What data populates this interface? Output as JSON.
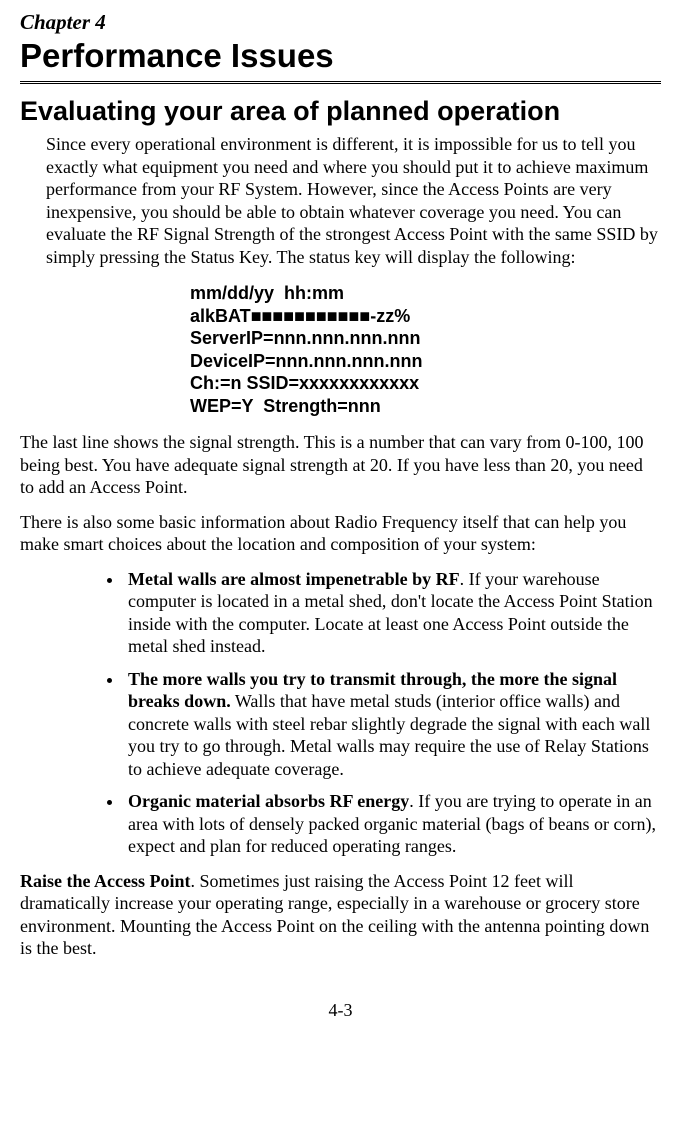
{
  "chapter": {
    "label": "Chapter 4",
    "title": "Performance Issues"
  },
  "section": {
    "title": "Evaluating your area of planned operation",
    "intro": "Since every operational environment is different, it is impossible for us to tell you exactly what equipment you need and where you should put it to achieve maximum performance from your RF System. However, since the Access Points are very inexpensive, you should be able to obtain whatever coverage you need. You can evaluate the RF Signal Strength of the strongest Access Point with the same SSID by simply pressing the Status Key. The status key will display the following:"
  },
  "status_display": {
    "line1": "mm/dd/yy  hh:mm",
    "line2_prefix": "alkBAT",
    "line2_blocks": "■■■■■■■■■■■",
    "line2_suffix": "-zz%",
    "line3": "ServerIP=nnn.nnn.nnn.nnn",
    "line4": "DeviceIP=nnn.nnn.nnn.nnn",
    "line5": "Ch:=n SSID=xxxxxxxxxxxx",
    "line6": "WEP=Y  Strength=nnn"
  },
  "after_status_1": "The last line shows the signal strength. This is a number that can vary from 0-100, 100 being best. You have adequate signal strength at 20. If you have less than 20, you need to add an Access Point.",
  "after_status_2": "There is also some basic information about Radio Frequency itself that can help you make smart choices about the location and composition of your system:",
  "bullets": [
    {
      "lead": "Metal walls are almost impenetrable by RF",
      "rest": ". If your warehouse computer is located in a metal shed, don't locate the Access Point Station inside with the computer. Locate at least one Access Point outside the metal shed instead."
    },
    {
      "lead": "The more walls you try to transmit through, the more the signal breaks down.",
      "rest": "  Walls that have metal studs (interior office walls) and concrete walls with steel rebar slightly degrade the signal with each wall you try to go through. Metal walls may require the use of Relay Stations to achieve adequate coverage."
    },
    {
      "lead": "Organic material absorbs RF energy",
      "rest": ". If you are trying to operate in an area with lots of densely packed organic material (bags of beans or corn), expect and plan for reduced operating ranges."
    }
  ],
  "raise": {
    "lead": "Raise the Access Point",
    "rest": ". Sometimes just raising the Access Point 12 feet will dramatically increase your operating range, especially in a warehouse or grocery store environment.  Mounting the Access Point on the ceiling with the antenna pointing down is the best."
  },
  "page_number": "4-3"
}
